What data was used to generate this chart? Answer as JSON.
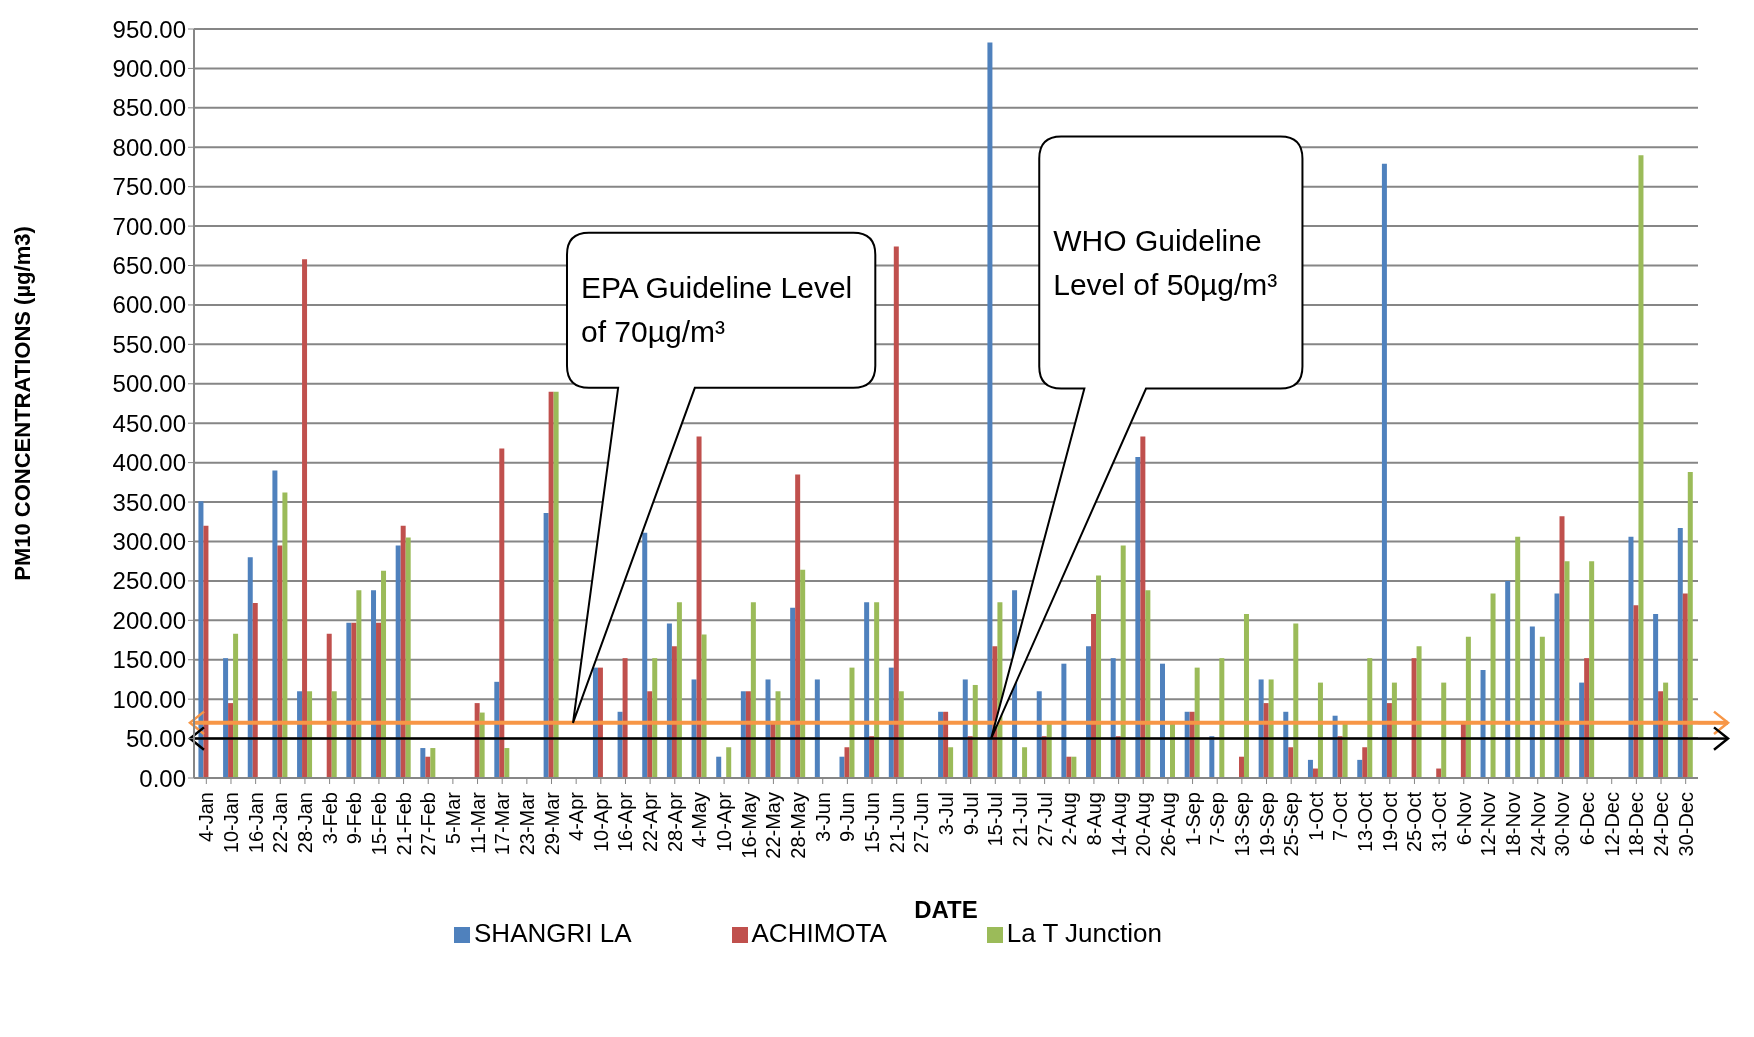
{
  "chart_data": {
    "type": "bar",
    "xlabel": "DATE",
    "ylabel": "PM10 CONCENTRATIONS  (µg/m3)",
    "categories": [
      "4-Jan",
      "10-Jan",
      "16-Jan",
      "22-Jan",
      "28-Jan",
      "3-Feb",
      "9-Feb",
      "15-Feb",
      "21-Feb",
      "27-Feb",
      "5-Mar",
      "11-Mar",
      "17-Mar",
      "23-Mar",
      "29-Mar",
      "4-Apr",
      "10-Apr",
      "16-Apr",
      "22-Apr",
      "28-Apr",
      "4-May",
      "10-Apr",
      "16-May",
      "22-May",
      "28-May",
      "3-Jun",
      "9-Jun",
      "15-Jun",
      "21-Jun",
      "27-Jun",
      "3-Jul",
      "9-Jul",
      "15-Jul",
      "21-Jul",
      "27-Jul",
      "2-Aug",
      "8-Aug",
      "14-Aug",
      "20-Aug",
      "26-Aug",
      "1-Sep",
      "7-Sep",
      "13-Sep",
      "19-Sep",
      "25-Sep",
      "1-Oct",
      "7-Oct",
      "13-Oct",
      "19-Oct",
      "25-Oct",
      "31-Oct",
      "6-Nov",
      "12-Nov",
      "18-Nov",
      "24-Nov",
      "30-Nov",
      "6-Dec",
      "12-Dec",
      "18-Dec",
      "24-Dec",
      "30-Dec"
    ],
    "series": [
      {
        "name": "SHANGRI LA",
        "color": "#4f81bd",
        "values": [
          351,
          152,
          280,
          390,
          110,
          null,
          197,
          238,
          295,
          38,
          null,
          null,
          122,
          null,
          336,
          null,
          140,
          84,
          311,
          196,
          125,
          27,
          110,
          125,
          216,
          125,
          27,
          223,
          140,
          null,
          84,
          125,
          933,
          238,
          110,
          145,
          167,
          152,
          407,
          145,
          84,
          53,
          null,
          125,
          84,
          23,
          79,
          23,
          779,
          null,
          null,
          null,
          137,
          250,
          192,
          234,
          121,
          null,
          306,
          208,
          317
        ]
      },
      {
        "name": "ACHIMOTA",
        "color": "#c0504d",
        "values": [
          320,
          95,
          222,
          295,
          658,
          183,
          197,
          197,
          320,
          27,
          null,
          95,
          418,
          null,
          490,
          null,
          140,
          152,
          110,
          167,
          433,
          null,
          110,
          70,
          385,
          null,
          39,
          53,
          674,
          null,
          84,
          53,
          167,
          null,
          53,
          27,
          208,
          53,
          433,
          null,
          84,
          null,
          27,
          95,
          39,
          12,
          53,
          39,
          95,
          152,
          12,
          70,
          null,
          null,
          null,
          332,
          152,
          null,
          219,
          110,
          234
        ]
      },
      {
        "name": "La T Junction",
        "color": "#9bbb59",
        "values": [
          null,
          183,
          null,
          362,
          110,
          110,
          238,
          263,
          305,
          38,
          null,
          83,
          38,
          null,
          490,
          null,
          null,
          null,
          152,
          223,
          182,
          39,
          223,
          110,
          264,
          null,
          140,
          223,
          110,
          null,
          39,
          118,
          223,
          39,
          70,
          27,
          257,
          295,
          238,
          70,
          140,
          152,
          208,
          125,
          196,
          121,
          70,
          152,
          121,
          167,
          121,
          179,
          234,
          306,
          179,
          275,
          275,
          null,
          790,
          121,
          388
        ]
      }
    ],
    "ylim": [
      0,
      950
    ],
    "yticks": [
      {
        "value": 0,
        "label": "0.00"
      },
      {
        "value": 50,
        "label": "50.00"
      },
      {
        "value": 100,
        "label": "100.00"
      },
      {
        "value": 150,
        "label": "150.00"
      },
      {
        "value": 200,
        "label": "200.00"
      },
      {
        "value": 250,
        "label": "250.00"
      },
      {
        "value": 300,
        "label": "300.00"
      },
      {
        "value": 350,
        "label": "350.00"
      },
      {
        "value": 400,
        "label": "400.00"
      },
      {
        "value": 450,
        "label": "450.00"
      },
      {
        "value": 500,
        "label": "500.00"
      },
      {
        "value": 550,
        "label": "550.00"
      },
      {
        "value": 600,
        "label": "600.00"
      },
      {
        "value": 650,
        "label": "650.00"
      },
      {
        "value": 700,
        "label": "700.00"
      },
      {
        "value": 750,
        "label": "750.00"
      },
      {
        "value": 800,
        "label": "800.00"
      },
      {
        "value": 850,
        "label": "850.00"
      },
      {
        "value": 900,
        "label": "900.00"
      },
      {
        "value": 950,
        "label": "950.00"
      }
    ],
    "grid": "y",
    "legend": "bottom",
    "ref_lines": [
      {
        "axis": "y",
        "value": 70,
        "color": "#f79646"
      },
      {
        "axis": "y",
        "value": 50,
        "color": "#000000"
      }
    ],
    "annotations": [
      "EPA Guideline  Level of 70µg/m³",
      "WHO Guideline Level of 50µg/m³"
    ]
  }
}
